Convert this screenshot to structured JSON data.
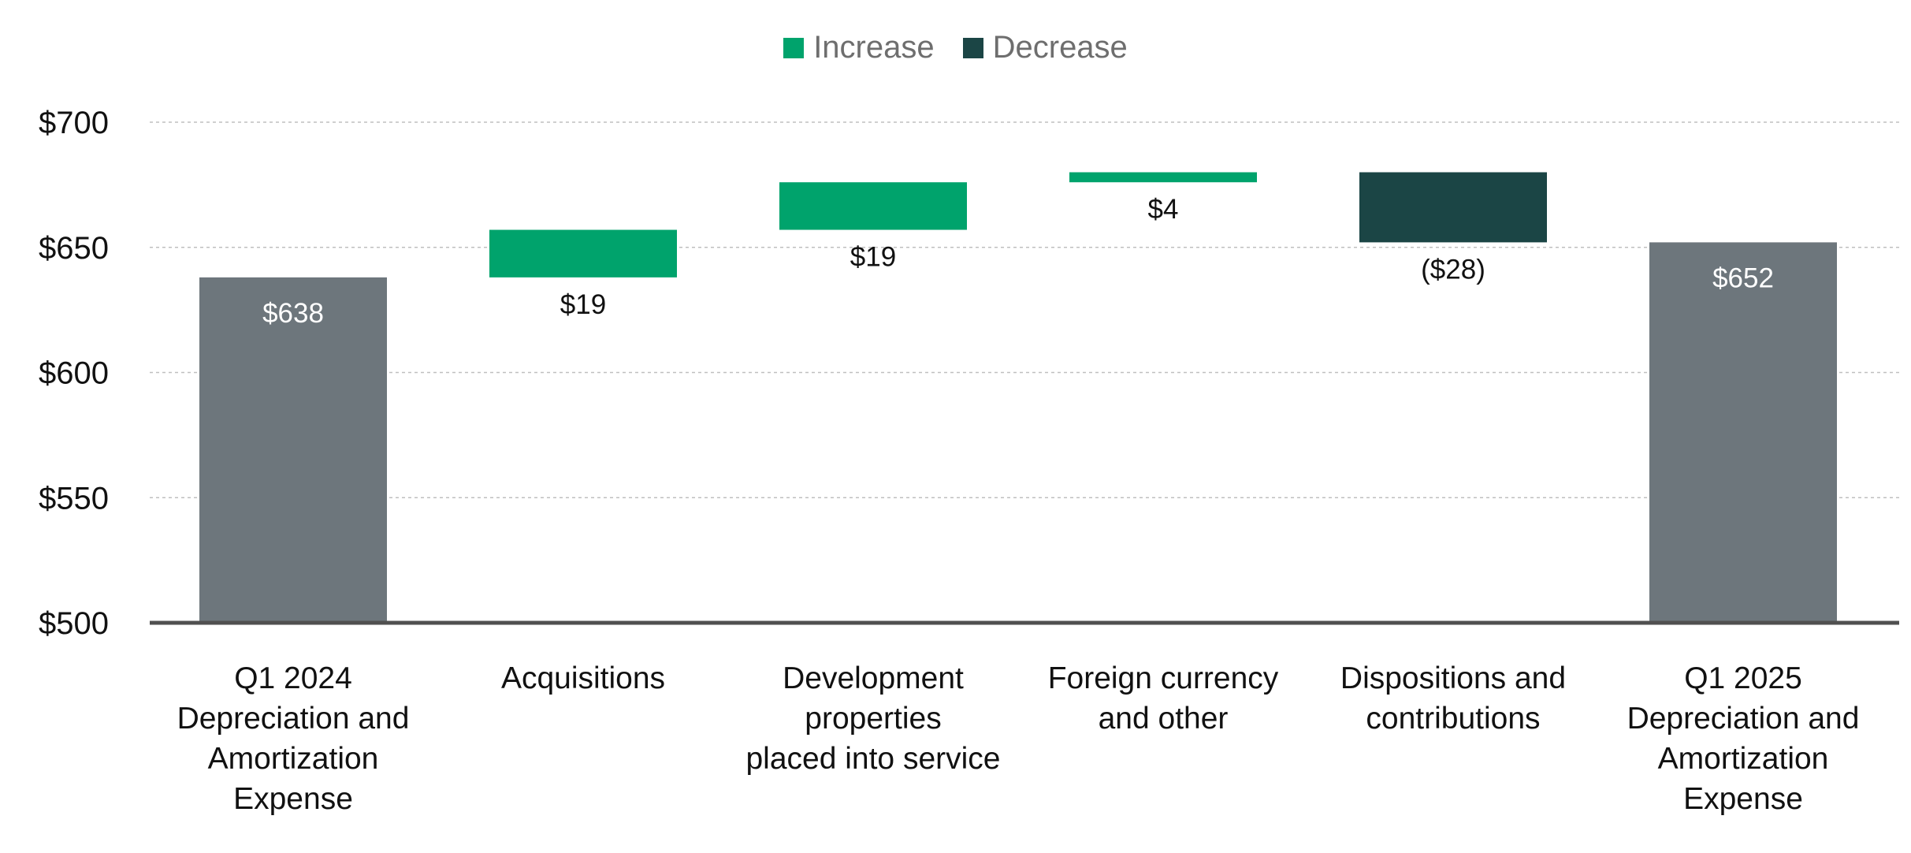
{
  "chart_data": {
    "type": "waterfall",
    "legend": [
      {
        "label": "Increase",
        "color": "#00A36C"
      },
      {
        "label": "Decrease",
        "color": "#1B4545"
      }
    ],
    "totals_color": "#6D767C",
    "categories": [
      "Q1 2024\nDepreciation and\nAmortization\nExpense",
      "Acquisitions",
      "Development\nproperties\nplaced into service",
      "Foreign currency\nand other",
      "Dispositions and\ncontributions",
      "Q1 2025\nDepreciation and\nAmortization\nExpense"
    ],
    "kinds": [
      "total",
      "increase",
      "increase",
      "increase",
      "decrease",
      "total"
    ],
    "starts": [
      500,
      638,
      657,
      676,
      680,
      500
    ],
    "ends": [
      638,
      657,
      676,
      680,
      652,
      652
    ],
    "values": [
      638,
      19,
      19,
      4,
      -28,
      652
    ],
    "value_labels": [
      "$638",
      "$19",
      "$19",
      "$4",
      "($28)",
      "$652"
    ],
    "ylim": [
      500,
      700
    ],
    "yticks": [
      500,
      550,
      600,
      650,
      700
    ],
    "ytick_labels": [
      "$500",
      "$550",
      "$600",
      "$650",
      "$700"
    ],
    "grid": true,
    "legend_position": "top-center"
  }
}
